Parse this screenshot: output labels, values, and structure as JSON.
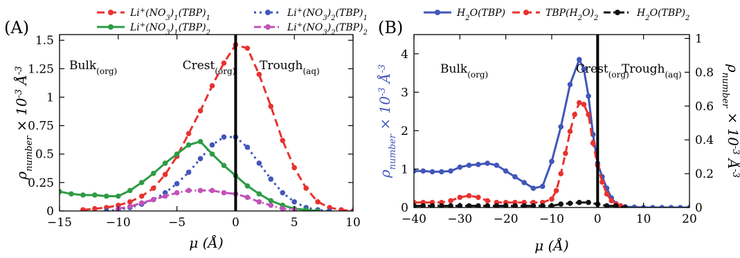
{
  "chart_data": [
    {
      "type": "line",
      "panel_label": "(A)",
      "xlabel": "μ (Å)",
      "ylabel": "ρnumber × 10-3 Å-3",
      "xlim": [
        -15,
        10
      ],
      "ylim": [
        0,
        1.55
      ],
      "xticks": [
        "-15",
        "-10",
        "-5",
        "0",
        "5",
        "10"
      ],
      "yticks": [
        "0",
        "0.25",
        "0.5",
        "0.75",
        "1",
        "1.25",
        "1.5"
      ],
      "vline_x": 0,
      "annotations": [
        {
          "base": "Bulk",
          "sub": "(org)"
        },
        {
          "base": "Crest",
          "sub": "(org)"
        },
        {
          "base": "Trough",
          "sub": "(aq)"
        }
      ],
      "series": [
        {
          "name": "Li+(NO3)1(TBP)1",
          "color": "#e8322f",
          "dash": "dashed",
          "x": [
            -13,
            -12,
            -11,
            -10,
            -9,
            -8,
            -7,
            -6,
            -5,
            -4,
            -3,
            -2,
            -1,
            0,
            1,
            2,
            3,
            4,
            5,
            6,
            7,
            8,
            9,
            10
          ],
          "y": [
            0.01,
            0.02,
            0.03,
            0.05,
            0.08,
            0.13,
            0.2,
            0.32,
            0.48,
            0.68,
            0.88,
            1.1,
            1.3,
            1.46,
            1.43,
            1.2,
            0.92,
            0.62,
            0.38,
            0.2,
            0.08,
            0.03,
            0.01,
            0.0
          ]
        },
        {
          "name": "Li+(NO3)2(TBP)1",
          "color": "#4156b8",
          "dash": "dotted",
          "x": [
            -11,
            -10,
            -9,
            -8,
            -7,
            -6,
            -5,
            -4,
            -3,
            -2,
            -1,
            0,
            1,
            2,
            3,
            4,
            5,
            6,
            7,
            8
          ],
          "y": [
            0.0,
            0.01,
            0.03,
            0.06,
            0.1,
            0.16,
            0.24,
            0.34,
            0.46,
            0.58,
            0.65,
            0.65,
            0.56,
            0.42,
            0.28,
            0.16,
            0.08,
            0.03,
            0.01,
            0.0
          ]
        },
        {
          "name": "Li+(NO3)1(TBP)2",
          "color": "#2e9b45",
          "dash": "solid",
          "x": [
            -15,
            -14,
            -13,
            -12,
            -11,
            -10,
            -9,
            -8,
            -7,
            -6,
            -5,
            -4,
            -3,
            -2,
            -1,
            0,
            1,
            2,
            3,
            4,
            5,
            6,
            7
          ],
          "y": [
            0.17,
            0.15,
            0.14,
            0.14,
            0.13,
            0.13,
            0.18,
            0.25,
            0.33,
            0.42,
            0.5,
            0.58,
            0.61,
            0.5,
            0.4,
            0.31,
            0.22,
            0.15,
            0.09,
            0.05,
            0.02,
            0.01,
            0.0
          ]
        },
        {
          "name": "Li+(NO3)2(TBP)2",
          "color": "#c251b8",
          "dash": "dashdot",
          "x": [
            -10,
            -9,
            -8,
            -7,
            -6,
            -5,
            -4,
            -3,
            -2,
            -1,
            0,
            1,
            2,
            3,
            4,
            5
          ],
          "y": [
            0.02,
            0.04,
            0.07,
            0.1,
            0.13,
            0.16,
            0.18,
            0.18,
            0.18,
            0.16,
            0.15,
            0.12,
            0.08,
            0.05,
            0.02,
            0.01
          ]
        }
      ]
    },
    {
      "type": "line",
      "panel_label": "(B)",
      "xlabel": "μ (Å)",
      "ylabel": "ρnumber × 10-3 Å-3",
      "ylabel_right": "ρnumber × 10-3 Å-3",
      "xlim": [
        -40,
        20
      ],
      "ylim": [
        0,
        4.5
      ],
      "ylim_right": [
        0,
        1.0227
      ],
      "xticks": [
        "-40",
        "-30",
        "-20",
        "-10",
        "0",
        "10",
        "20"
      ],
      "yticks": [
        "0",
        "1",
        "2",
        "3",
        "4"
      ],
      "yticks_right": [
        "0",
        "0.2",
        "0.4",
        "0.6",
        "0.8",
        "1"
      ],
      "vline_x": 0,
      "annotations": [
        {
          "base": "Bulk",
          "sub": "(org)"
        },
        {
          "base": "Crest",
          "sub": "(org)"
        },
        {
          "base": "Trough",
          "sub": "(aq)"
        }
      ],
      "series": [
        {
          "name": "H2O(TBP)",
          "color": "#4156b8",
          "dash": "solid",
          "axis": "left",
          "x": [
            -40,
            -38,
            -36,
            -34,
            -32,
            -30,
            -28,
            -26,
            -24,
            -22,
            -20,
            -18,
            -16,
            -14,
            -12,
            -10,
            -8,
            -6,
            -4,
            -3,
            -2,
            -1,
            0,
            1,
            2,
            3,
            4,
            5,
            6,
            8,
            10,
            12,
            14,
            16,
            18,
            20
          ],
          "y": [
            0.95,
            0.95,
            0.93,
            0.93,
            0.95,
            1.05,
            1.1,
            1.12,
            1.15,
            1.1,
            0.95,
            0.8,
            0.65,
            0.5,
            0.55,
            1.2,
            2.1,
            3.2,
            3.85,
            3.6,
            2.9,
            1.9,
            1.15,
            0.8,
            0.5,
            0.25,
            0.1,
            0.04,
            0.02,
            0.01,
            0.0,
            0.0,
            0.0,
            0.0,
            0.0,
            0.0
          ]
        },
        {
          "name": "TBP(H2O)2",
          "color": "#e8322f",
          "dash": "dashed",
          "axis": "right",
          "x": [
            -40,
            -38,
            -36,
            -34,
            -32,
            -30,
            -28,
            -26,
            -24,
            -22,
            -20,
            -18,
            -16,
            -14,
            -12,
            -10,
            -9,
            -8,
            -7,
            -6,
            -5,
            -4,
            -3,
            -2,
            -1,
            0,
            1,
            2,
            3,
            4,
            5,
            6
          ],
          "y": [
            0.03,
            0.03,
            0.03,
            0.03,
            0.04,
            0.06,
            0.07,
            0.06,
            0.04,
            0.03,
            0.03,
            0.03,
            0.03,
            0.03,
            0.03,
            0.05,
            0.1,
            0.2,
            0.32,
            0.45,
            0.55,
            0.62,
            0.61,
            0.55,
            0.38,
            0.25,
            0.15,
            0.08,
            0.04,
            0.02,
            0.01,
            0.0
          ]
        },
        {
          "name": "H2O(TBP)2",
          "color": "#111111",
          "dash": "dashdot",
          "axis": "right",
          "x": [
            -40,
            -38,
            -36,
            -34,
            -32,
            -30,
            -28,
            -26,
            -24,
            -22,
            -20,
            -18,
            -16,
            -14,
            -12,
            -10,
            -8,
            -6,
            -4,
            -2,
            0,
            2,
            4,
            6
          ],
          "y": [
            0.01,
            0.01,
            0.01,
            0.01,
            0.01,
            0.01,
            0.01,
            0.01,
            0.01,
            0.01,
            0.01,
            0.01,
            0.01,
            0.01,
            0.01,
            0.01,
            0.02,
            0.025,
            0.03,
            0.03,
            0.02,
            0.01,
            0.01,
            0.0
          ]
        }
      ]
    }
  ]
}
